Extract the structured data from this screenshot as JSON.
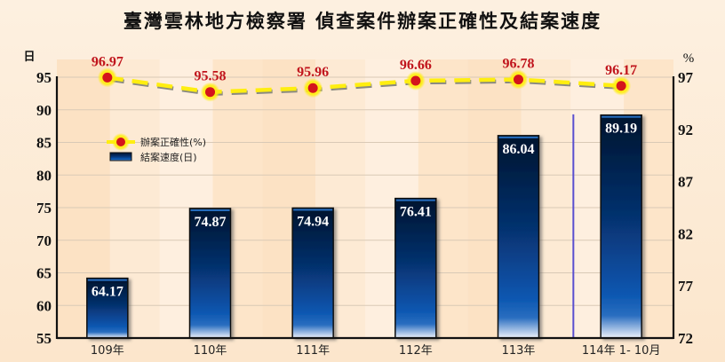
{
  "chart_data": {
    "type": "bar+line",
    "title": "臺灣雲林地方檢察署 偵查案件辦案正確性及結案速度",
    "categories": [
      "109年",
      "110年",
      "111年",
      "112年",
      "113年",
      "114年 1- 10月"
    ],
    "series": [
      {
        "name": "結案速度(日)",
        "type": "bar",
        "axis": "left",
        "values": [
          64.17,
          74.87,
          74.94,
          76.41,
          86.04,
          89.19
        ]
      },
      {
        "name": "辦案正確性(%)",
        "type": "line",
        "axis": "right",
        "values": [
          96.97,
          95.58,
          95.96,
          96.66,
          96.78,
          96.17
        ]
      }
    ],
    "left_axis": {
      "label": "日",
      "ticks": [
        55,
        60,
        65,
        70,
        75,
        80,
        85,
        90,
        95
      ],
      "ylim": [
        55,
        95
      ]
    },
    "right_axis": {
      "label": "%",
      "ticks": [
        72,
        77,
        82,
        87,
        92,
        97
      ],
      "ylim": [
        72,
        97
      ]
    },
    "legend": {
      "position": "upper-left",
      "entries": [
        "辦案正確性(%)",
        "結案速度(日)"
      ]
    },
    "grid": true,
    "colors": {
      "bar_top": "#03142e",
      "bar_mid": "#0a56b0",
      "bar_bottom": "#e8eefa",
      "line": "#ffee10",
      "line_shadow": "#8a8a80",
      "marker": "#d4141c",
      "point_label": "#c0141c",
      "separator": "#6a5acd"
    }
  }
}
